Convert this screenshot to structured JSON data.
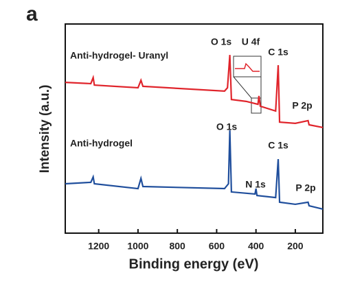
{
  "chart_data": {
    "type": "line",
    "panel_label": "a",
    "xlabel": "Binding energy (eV)",
    "ylabel": "Intensity (a.u.)",
    "xlim": [
      1370,
      60
    ],
    "xticks": [
      1200,
      1000,
      800,
      600,
      400,
      200
    ],
    "ylim": [
      0,
      100
    ],
    "series": [
      {
        "name": "Anti-hydrogel- Uranyl",
        "color": "#e0242b",
        "x": [
          1370,
          1240,
          1228,
          1222,
          1000,
          985,
          975,
          560,
          545,
          533,
          525,
          450,
          390,
          385,
          378,
          300,
          287,
          280,
          200,
          135,
          130,
          60
        ],
        "values": [
          72.1,
          71.5,
          74.4,
          70.8,
          69.5,
          73.1,
          70.2,
          67.9,
          69.5,
          85.2,
          63.9,
          63,
          61.6,
          65.6,
          60.7,
          58.4,
          80.3,
          53.1,
          52.5,
          53.8,
          51.8,
          50.5
        ]
      },
      {
        "name": "Anti-hydrogel",
        "color": "#1f4e9c",
        "x": [
          1370,
          1240,
          1228,
          1222,
          1000,
          985,
          975,
          560,
          540,
          533,
          525,
          405,
          400,
          395,
          300,
          287,
          280,
          200,
          135,
          130,
          60
        ],
        "values": [
          23.6,
          24.3,
          26.9,
          23.6,
          21.3,
          26.2,
          22.3,
          21.3,
          23.6,
          49.2,
          19.7,
          18.7,
          21.3,
          18,
          17,
          35.4,
          14.8,
          13.8,
          14.8,
          13.1,
          11.5
        ]
      }
    ],
    "annotations": [
      "O 1s",
      "U 4f",
      "C 1s",
      "P 2p",
      "O 1s",
      "C 1s",
      "N 1s",
      "P 2p"
    ]
  }
}
